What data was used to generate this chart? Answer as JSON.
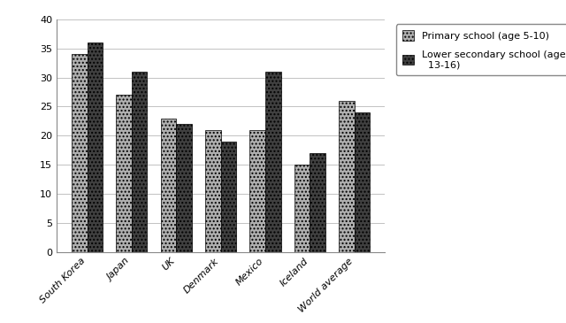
{
  "categories": [
    "South Korea",
    "Japan",
    "UK",
    "Denmark",
    "Mexico",
    "Iceland",
    "World average"
  ],
  "primary": [
    34,
    27,
    23,
    21,
    21,
    15,
    26
  ],
  "secondary": [
    36,
    31,
    22,
    19,
    31,
    17,
    24
  ],
  "primary_label": "Primary school (age 5-10)",
  "secondary_label": "Lower secondary school (age\n  13-16)",
  "ylim": [
    0,
    40
  ],
  "yticks": [
    0,
    5,
    10,
    15,
    20,
    25,
    30,
    35,
    40
  ],
  "bar_width": 0.35,
  "primary_hatch": "....",
  "secondary_hatch": "....",
  "primary_color": "#b0b0b0",
  "secondary_color": "#404040",
  "edge_color": "#000000",
  "background_color": "#ffffff",
  "grid_color": "#aaaaaa",
  "tick_fontsize": 8,
  "legend_fontsize": 8
}
